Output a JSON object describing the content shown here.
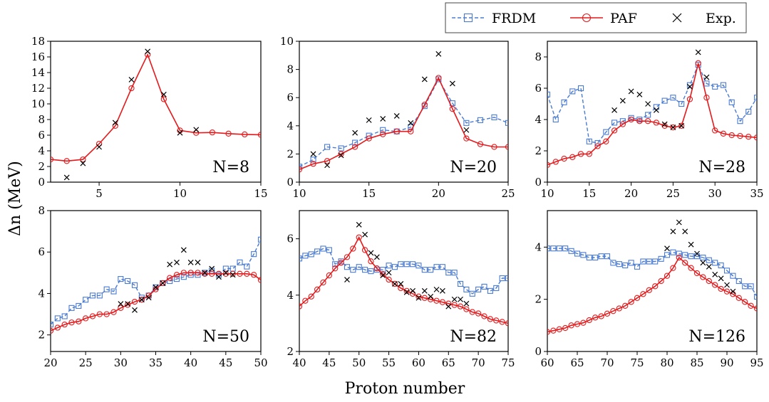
{
  "figure": {
    "ylabel": "Δn (MeV)",
    "xlabel": "Proton number",
    "legend": [
      "FRDM",
      "PAF",
      "Exp."
    ],
    "colors": {
      "FRDM": "#4a7bd0",
      "PAF": "#e41a1c",
      "Exp.": "#000000"
    }
  },
  "chart_data": [
    {
      "type": "line",
      "label": "N=8",
      "xlim": [
        2,
        15
      ],
      "ylim": [
        0,
        18
      ],
      "xticks": [
        5,
        10,
        15
      ],
      "yticks": [
        0,
        2,
        4,
        6,
        8,
        10,
        12,
        14,
        16,
        18
      ],
      "series": [
        {
          "name": "PAF",
          "x": [
            2,
            3,
            4,
            5,
            6,
            7,
            8,
            9,
            10,
            11,
            12,
            13,
            14,
            15
          ],
          "y": [
            2.9,
            2.7,
            2.9,
            4.9,
            7.2,
            12.0,
            16.3,
            10.6,
            6.6,
            6.3,
            6.35,
            6.2,
            6.1,
            6.05
          ]
        },
        {
          "name": "Exp.",
          "x": [
            3,
            4,
            5,
            6,
            7,
            8,
            9,
            10,
            11
          ],
          "y": [
            0.6,
            2.4,
            4.5,
            7.6,
            13.1,
            16.7,
            11.2,
            6.3,
            6.7
          ]
        }
      ]
    },
    {
      "type": "line",
      "label": "N=20",
      "xlim": [
        10,
        25
      ],
      "ylim": [
        0,
        10
      ],
      "xticks": [
        10,
        15,
        20,
        25
      ],
      "yticks": [
        0,
        2,
        4,
        6,
        8,
        10
      ],
      "series": [
        {
          "name": "FRDM",
          "x": [
            10,
            11,
            12,
            13,
            14,
            15,
            16,
            17,
            18,
            19,
            20,
            21,
            22,
            23,
            24,
            25
          ],
          "y": [
            1.1,
            1.6,
            2.5,
            2.4,
            2.8,
            3.3,
            3.7,
            3.6,
            3.9,
            5.4,
            7.3,
            5.6,
            4.2,
            4.4,
            4.6,
            4.2
          ]
        },
        {
          "name": "PAF",
          "x": [
            10,
            11,
            12,
            13,
            14,
            15,
            16,
            17,
            18,
            19,
            20,
            21,
            22,
            23,
            24,
            25
          ],
          "y": [
            0.9,
            1.3,
            1.5,
            2.0,
            2.5,
            3.1,
            3.4,
            3.6,
            3.6,
            5.5,
            7.4,
            5.2,
            3.1,
            2.7,
            2.5,
            2.5
          ]
        },
        {
          "name": "Exp.",
          "x": [
            11,
            12,
            13,
            14,
            15,
            16,
            17,
            18,
            19,
            20,
            21,
            22
          ],
          "y": [
            2.0,
            1.2,
            1.9,
            3.5,
            4.4,
            4.5,
            4.7,
            4.2,
            7.3,
            9.1,
            7.0,
            3.7
          ]
        }
      ]
    },
    {
      "type": "line",
      "label": "N=28",
      "xlim": [
        10,
        35
      ],
      "ylim": [
        0,
        9
      ],
      "xticks": [
        10,
        15,
        20,
        25,
        30,
        35
      ],
      "yticks": [
        0,
        2,
        4,
        6,
        8
      ],
      "series": [
        {
          "name": "FRDM",
          "x": [
            10,
            11,
            12,
            13,
            14,
            15,
            16,
            17,
            18,
            19,
            20,
            21,
            22,
            23,
            24,
            25,
            26,
            27,
            28,
            29,
            30,
            31,
            32,
            33,
            34,
            35
          ],
          "y": [
            5.6,
            4.0,
            5.1,
            5.8,
            6.0,
            2.6,
            2.5,
            3.2,
            3.8,
            3.9,
            4.1,
            4.0,
            4.3,
            4.8,
            5.2,
            5.4,
            5.0,
            6.2,
            7.5,
            6.3,
            6.1,
            6.2,
            5.1,
            3.9,
            4.5,
            5.4
          ]
        },
        {
          "name": "PAF",
          "x": [
            10,
            11,
            12,
            13,
            14,
            15,
            16,
            17,
            18,
            19,
            20,
            21,
            22,
            23,
            24,
            25,
            26,
            27,
            28,
            29,
            30,
            31,
            32,
            33,
            34,
            35
          ],
          "y": [
            1.1,
            1.3,
            1.5,
            1.6,
            1.8,
            1.8,
            2.3,
            2.6,
            3.3,
            3.7,
            4.0,
            3.9,
            3.9,
            3.8,
            3.6,
            3.5,
            3.6,
            5.3,
            7.6,
            5.4,
            3.3,
            3.1,
            3.0,
            2.95,
            2.9,
            2.85
          ]
        },
        {
          "name": "Exp.",
          "x": [
            18,
            19,
            20,
            21,
            22,
            23,
            24,
            25,
            26,
            27,
            28,
            29
          ],
          "y": [
            4.6,
            5.2,
            5.8,
            5.6,
            5.0,
            4.6,
            3.7,
            3.5,
            3.6,
            6.1,
            8.3,
            6.7
          ]
        }
      ]
    },
    {
      "type": "line",
      "label": "N=50",
      "xlim": [
        20,
        50
      ],
      "ylim": [
        1.2,
        8
      ],
      "xticks": [
        20,
        25,
        30,
        35,
        40,
        45,
        50
      ],
      "yticks": [
        2,
        4,
        6,
        8
      ],
      "series": [
        {
          "name": "FRDM",
          "x": [
            20,
            21,
            22,
            23,
            24,
            25,
            26,
            27,
            28,
            29,
            30,
            31,
            32,
            33,
            34,
            35,
            36,
            37,
            38,
            39,
            40,
            41,
            42,
            43,
            44,
            45,
            46,
            47,
            48,
            49,
            50
          ],
          "y": [
            2.5,
            2.8,
            2.9,
            3.3,
            3.4,
            3.7,
            3.9,
            3.9,
            4.2,
            4.1,
            4.7,
            4.6,
            4.4,
            3.8,
            3.9,
            4.3,
            4.5,
            4.6,
            4.7,
            4.8,
            4.9,
            4.9,
            5.0,
            5.1,
            4.9,
            5.2,
            5.2,
            5.5,
            5.3,
            5.9,
            6.6
          ]
        },
        {
          "name": "PAF",
          "x": [
            20,
            21,
            22,
            23,
            24,
            25,
            26,
            27,
            28,
            29,
            30,
            31,
            32,
            33,
            34,
            35,
            36,
            37,
            38,
            39,
            40,
            41,
            42,
            43,
            44,
            45,
            46,
            47,
            48,
            49,
            50
          ],
          "y": [
            2.2,
            2.35,
            2.5,
            2.6,
            2.65,
            2.8,
            2.9,
            3.0,
            3.0,
            3.1,
            3.3,
            3.45,
            3.6,
            3.7,
            3.9,
            4.2,
            4.5,
            4.75,
            4.9,
            5.0,
            5.0,
            5.0,
            4.95,
            4.95,
            4.95,
            4.95,
            4.95,
            4.95,
            4.95,
            4.9,
            4.65
          ]
        },
        {
          "name": "Exp.",
          "x": [
            30,
            31,
            32,
            33,
            34,
            35,
            36,
            37,
            38,
            39,
            40,
            41,
            42,
            43,
            44,
            45,
            46
          ],
          "y": [
            3.5,
            3.5,
            3.2,
            3.7,
            3.8,
            4.3,
            4.5,
            5.4,
            5.5,
            6.1,
            5.5,
            5.5,
            5.0,
            5.2,
            4.8,
            5.0,
            4.9
          ]
        }
      ]
    },
    {
      "type": "line",
      "label": "N=82",
      "xlim": [
        40,
        75
      ],
      "ylim": [
        2,
        7
      ],
      "xticks": [
        40,
        45,
        50,
        55,
        60,
        65,
        70,
        75
      ],
      "yticks": [
        2,
        4,
        6
      ],
      "series": [
        {
          "name": "FRDM",
          "x": [
            40,
            41,
            42,
            43,
            44,
            45,
            46,
            47,
            48,
            49,
            50,
            51,
            52,
            53,
            54,
            55,
            56,
            57,
            58,
            59,
            60,
            61,
            62,
            63,
            64,
            65,
            66,
            67,
            68,
            69,
            70,
            71,
            72,
            73,
            74,
            75
          ],
          "y": [
            5.3,
            5.4,
            5.45,
            5.55,
            5.65,
            5.6,
            5.1,
            5.2,
            5.0,
            4.9,
            5.0,
            4.9,
            4.85,
            4.9,
            4.9,
            5.05,
            5.0,
            5.1,
            5.1,
            5.1,
            5.05,
            4.9,
            4.9,
            5.0,
            5.0,
            4.8,
            4.8,
            4.4,
            4.2,
            4.05,
            4.2,
            4.3,
            4.15,
            4.25,
            4.6,
            4.6
          ]
        },
        {
          "name": "PAF",
          "x": [
            40,
            41,
            42,
            43,
            44,
            45,
            46,
            47,
            48,
            49,
            50,
            51,
            52,
            53,
            54,
            55,
            56,
            57,
            58,
            59,
            60,
            61,
            62,
            63,
            64,
            65,
            66,
            67,
            68,
            69,
            70,
            71,
            72,
            73,
            74,
            75
          ],
          "y": [
            3.6,
            3.8,
            3.95,
            4.2,
            4.45,
            4.7,
            4.95,
            5.15,
            5.35,
            5.65,
            6.05,
            5.6,
            5.2,
            4.95,
            4.75,
            4.55,
            4.4,
            4.25,
            4.15,
            4.05,
            3.95,
            3.9,
            3.85,
            3.8,
            3.75,
            3.7,
            3.65,
            3.6,
            3.5,
            3.4,
            3.35,
            3.25,
            3.15,
            3.1,
            3.05,
            3.0
          ]
        },
        {
          "name": "Exp.",
          "x": [
            48,
            50,
            51,
            52,
            53,
            54,
            55,
            56,
            57,
            58,
            59,
            60,
            61,
            62,
            63,
            64,
            65,
            66,
            67,
            68
          ],
          "y": [
            4.55,
            6.5,
            6.15,
            5.5,
            5.35,
            4.7,
            4.8,
            4.4,
            4.4,
            4.1,
            4.15,
            3.9,
            4.15,
            3.95,
            4.2,
            4.15,
            3.6,
            3.85,
            3.85,
            3.7
          ]
        }
      ]
    },
    {
      "type": "line",
      "label": "N=126",
      "xlim": [
        60,
        95
      ],
      "ylim": [
        0,
        5.4
      ],
      "xticks": [
        60,
        65,
        70,
        75,
        80,
        85,
        90,
        95
      ],
      "yticks": [
        0,
        2,
        4
      ],
      "series": [
        {
          "name": "FRDM",
          "x": [
            60,
            61,
            62,
            63,
            64,
            65,
            66,
            67,
            68,
            69,
            70,
            71,
            72,
            73,
            74,
            75,
            76,
            77,
            78,
            79,
            80,
            81,
            82,
            83,
            84,
            85,
            86,
            87,
            88,
            89,
            90,
            91,
            92,
            93,
            94,
            95
          ],
          "y": [
            3.95,
            3.95,
            3.95,
            3.95,
            3.85,
            3.75,
            3.7,
            3.6,
            3.6,
            3.65,
            3.65,
            3.4,
            3.35,
            3.3,
            3.4,
            3.25,
            3.45,
            3.45,
            3.45,
            3.55,
            3.7,
            3.8,
            3.75,
            3.7,
            3.65,
            3.65,
            3.6,
            3.5,
            3.4,
            3.3,
            3.1,
            2.9,
            2.7,
            2.5,
            2.5,
            2.1
          ]
        },
        {
          "name": "PAF",
          "x": [
            60,
            61,
            62,
            63,
            64,
            65,
            66,
            67,
            68,
            69,
            70,
            71,
            72,
            73,
            74,
            75,
            76,
            77,
            78,
            79,
            80,
            81,
            82,
            83,
            84,
            85,
            86,
            87,
            88,
            89,
            90,
            91,
            92,
            93,
            94,
            95
          ],
          "y": [
            0.75,
            0.8,
            0.85,
            0.9,
            1.0,
            1.05,
            1.1,
            1.2,
            1.3,
            1.35,
            1.45,
            1.55,
            1.65,
            1.75,
            1.9,
            2.05,
            2.2,
            2.35,
            2.5,
            2.7,
            2.9,
            3.2,
            3.6,
            3.4,
            3.2,
            3.0,
            2.85,
            2.7,
            2.55,
            2.4,
            2.3,
            2.2,
            2.05,
            1.9,
            1.75,
            1.65
          ]
        },
        {
          "name": "Exp.",
          "x": [
            80,
            81,
            82,
            83,
            84,
            85,
            86,
            87,
            88,
            89,
            90,
            91
          ],
          "y": [
            3.95,
            4.6,
            4.95,
            4.6,
            4.1,
            3.75,
            3.4,
            3.25,
            2.95,
            2.8,
            2.55,
            2.3
          ]
        }
      ]
    }
  ]
}
